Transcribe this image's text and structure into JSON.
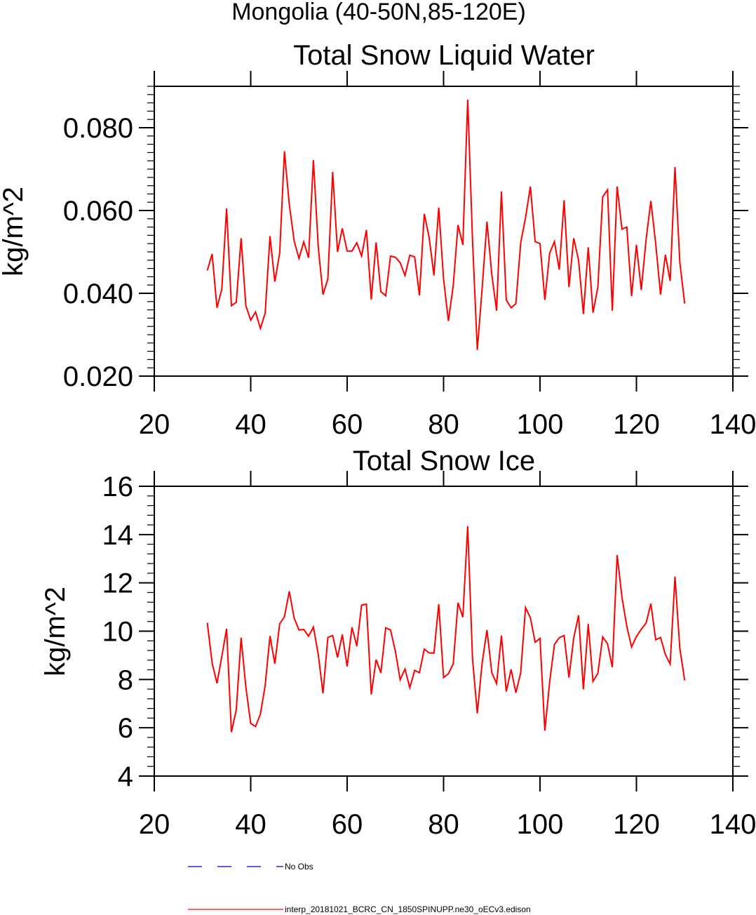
{
  "page_title": "Mongolia (40-50N,85-120E)",
  "chart_data": [
    {
      "type": "line",
      "title": "Total Snow Liquid Water",
      "xlabel": "",
      "ylabel": "kg/m^2",
      "xlim": [
        20,
        140
      ],
      "ylim": [
        0.02,
        0.09
      ],
      "xticks": [
        20,
        40,
        60,
        80,
        100,
        120,
        140
      ],
      "xtick_labels": [
        "20",
        "40",
        "60",
        "80",
        "100",
        "120",
        "140"
      ],
      "yticks": [
        0.02,
        0.04,
        0.06,
        0.08
      ],
      "ytick_labels": [
        "0.020",
        "0.040",
        "0.060",
        "0.080"
      ],
      "color": "#ff0000",
      "x_start": 31,
      "values": [
        0.0455,
        0.0495,
        0.0365,
        0.041,
        0.0605,
        0.037,
        0.0378,
        0.0533,
        0.037,
        0.0335,
        0.0355,
        0.0315,
        0.0352,
        0.0538,
        0.0428,
        0.0497,
        0.0743,
        0.0615,
        0.0527,
        0.0484,
        0.0524,
        0.0486,
        0.0722,
        0.0512,
        0.0397,
        0.0435,
        0.0693,
        0.05,
        0.0557,
        0.0502,
        0.0502,
        0.0522,
        0.049,
        0.0553,
        0.0385,
        0.0523,
        0.0404,
        0.0394,
        0.049,
        0.0487,
        0.0474,
        0.0443,
        0.0492,
        0.0488,
        0.0395,
        0.0592,
        0.0535,
        0.0443,
        0.0607,
        0.0435,
        0.0333,
        0.0419,
        0.0565,
        0.0517,
        0.0868,
        0.0528,
        0.0263,
        0.0412,
        0.0573,
        0.0445,
        0.0358,
        0.0646,
        0.0384,
        0.0365,
        0.0375,
        0.0522,
        0.0583,
        0.0658,
        0.0525,
        0.052,
        0.0384,
        0.0497,
        0.0525,
        0.0457,
        0.0625,
        0.0415,
        0.0533,
        0.048,
        0.035,
        0.0511,
        0.0353,
        0.0415,
        0.0633,
        0.065,
        0.0358,
        0.0658,
        0.0555,
        0.056,
        0.0393,
        0.0517,
        0.0408,
        0.053,
        0.0623,
        0.052,
        0.0397,
        0.0493,
        0.043,
        0.0705,
        0.0475,
        0.0375
      ]
    },
    {
      "type": "line",
      "title": "Total Snow Ice",
      "xlabel": "",
      "ylabel": "kg/m^2",
      "xlim": [
        20,
        140
      ],
      "ylim": [
        4,
        16
      ],
      "xticks": [
        20,
        40,
        60,
        80,
        100,
        120,
        140
      ],
      "xtick_labels": [
        "20",
        "40",
        "60",
        "80",
        "100",
        "120",
        "140"
      ],
      "yticks": [
        4,
        6,
        8,
        10,
        12,
        14,
        16
      ],
      "ytick_labels": [
        "4",
        "6",
        "8",
        "10",
        "12",
        "14",
        "16"
      ],
      "color": "#ff0000",
      "x_start": 31,
      "values": [
        10.35,
        8.68,
        7.84,
        8.95,
        10.1,
        5.82,
        6.74,
        9.73,
        7.68,
        6.18,
        6.05,
        6.56,
        7.75,
        9.8,
        8.65,
        10.3,
        10.6,
        11.65,
        10.55,
        10.05,
        10.07,
        9.79,
        10.17,
        9.04,
        7.42,
        9.74,
        9.82,
        8.91,
        9.86,
        8.54,
        10.16,
        9.38,
        11.08,
        11.12,
        7.38,
        8.82,
        8.27,
        10.14,
        10.05,
        9.17,
        7.99,
        8.43,
        7.66,
        8.38,
        8.28,
        9.26,
        9.1,
        9.09,
        11.12,
        8.08,
        8.24,
        8.65,
        11.18,
        10.58,
        14.35,
        8.85,
        6.6,
        8.68,
        10.05,
        8.28,
        7.83,
        9.82,
        7.5,
        8.42,
        7.45,
        8.28,
        10.98,
        10.55,
        9.54,
        9.7,
        5.88,
        7.9,
        9.45,
        9.73,
        9.82,
        8.08,
        9.72,
        10.66,
        7.59,
        10.3,
        7.92,
        8.25,
        9.76,
        9.48,
        8.51,
        13.15,
        11.4,
        10.2,
        9.34,
        9.78,
        10.08,
        10.33,
        11.14,
        9.64,
        9.74,
        9.03,
        8.64,
        12.26,
        9.28,
        7.96
      ]
    }
  ],
  "legend": {
    "items": [
      {
        "label": "No Obs",
        "color": "#0000cc",
        "style": "dashed"
      },
      {
        "label": "interp_20181021_BCRC_CN_1850SPINUPP.ne30_oECv3.edison",
        "color": "#ff0000",
        "style": "solid"
      }
    ]
  }
}
